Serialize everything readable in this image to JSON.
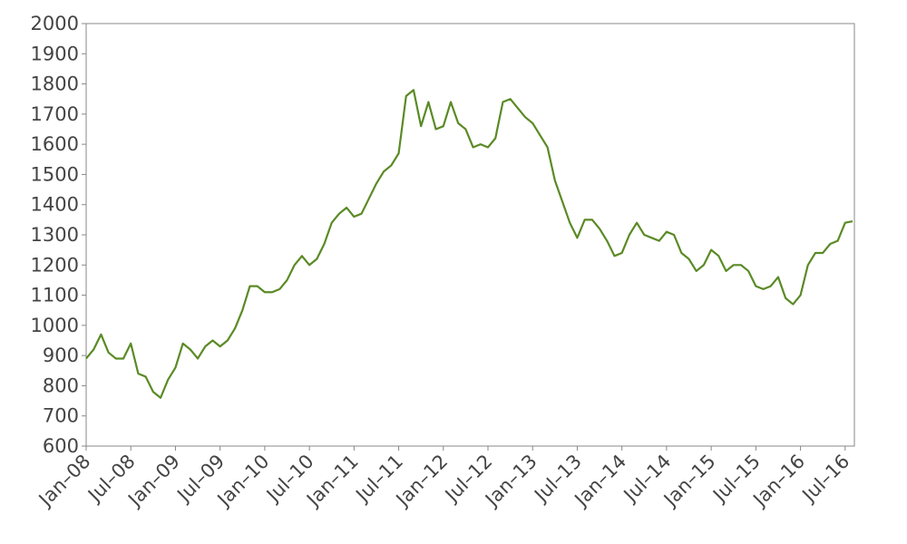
{
  "chart_data": {
    "type": "line",
    "color": "#5a8a25",
    "x": [
      "2008-01",
      "2008-02",
      "2008-03",
      "2008-04",
      "2008-05",
      "2008-06",
      "2008-07",
      "2008-08",
      "2008-09",
      "2008-10",
      "2008-11",
      "2008-12",
      "2009-01",
      "2009-02",
      "2009-03",
      "2009-04",
      "2009-05",
      "2009-06",
      "2009-07",
      "2009-08",
      "2009-09",
      "2009-10",
      "2009-11",
      "2009-12",
      "2010-01",
      "2010-02",
      "2010-03",
      "2010-04",
      "2010-05",
      "2010-06",
      "2010-07",
      "2010-08",
      "2010-09",
      "2010-10",
      "2010-11",
      "2010-12",
      "2011-01",
      "2011-02",
      "2011-03",
      "2011-04",
      "2011-05",
      "2011-06",
      "2011-07",
      "2011-08",
      "2011-09",
      "2011-10",
      "2011-11",
      "2011-12",
      "2012-01",
      "2012-02",
      "2012-03",
      "2012-04",
      "2012-05",
      "2012-06",
      "2012-07",
      "2012-08",
      "2012-09",
      "2012-10",
      "2012-11",
      "2012-12",
      "2013-01",
      "2013-02",
      "2013-03",
      "2013-04",
      "2013-05",
      "2013-06",
      "2013-07",
      "2013-08",
      "2013-09",
      "2013-10",
      "2013-11",
      "2013-12",
      "2014-01",
      "2014-02",
      "2014-03",
      "2014-04",
      "2014-05",
      "2014-06",
      "2014-07",
      "2014-08",
      "2014-09",
      "2014-10",
      "2014-11",
      "2014-12",
      "2015-01",
      "2015-02",
      "2015-03",
      "2015-04",
      "2015-05",
      "2015-06",
      "2015-07",
      "2015-08",
      "2015-09",
      "2015-10",
      "2015-11",
      "2015-12",
      "2016-01",
      "2016-02",
      "2016-03",
      "2016-04",
      "2016-05",
      "2016-06",
      "2016-07",
      "2016-08"
    ],
    "values": [
      890,
      920,
      970,
      910,
      890,
      890,
      940,
      840,
      830,
      780,
      760,
      820,
      860,
      940,
      920,
      890,
      930,
      950,
      930,
      950,
      990,
      1050,
      1130,
      1130,
      1110,
      1110,
      1120,
      1150,
      1200,
      1230,
      1200,
      1220,
      1270,
      1340,
      1370,
      1390,
      1360,
      1370,
      1420,
      1470,
      1510,
      1530,
      1570,
      1760,
      1780,
      1660,
      1740,
      1650,
      1660,
      1740,
      1670,
      1650,
      1590,
      1600,
      1590,
      1620,
      1740,
      1750,
      1720,
      1690,
      1670,
      1630,
      1590,
      1480,
      1410,
      1340,
      1290,
      1350,
      1350,
      1320,
      1280,
      1230,
      1240,
      1300,
      1340,
      1300,
      1290,
      1280,
      1310,
      1300,
      1240,
      1220,
      1180,
      1200,
      1250,
      1230,
      1180,
      1200,
      1200,
      1180,
      1130,
      1120,
      1130,
      1160,
      1090,
      1070,
      1100,
      1200,
      1240,
      1240,
      1270,
      1280,
      1340,
      1345
    ],
    "xlim": [
      "2008-01",
      "2016-08"
    ],
    "xticks": [
      {
        "value": "2008-01",
        "label": "Jan–08"
      },
      {
        "value": "2008-07",
        "label": "Jul–08"
      },
      {
        "value": "2009-01",
        "label": "Jan–09"
      },
      {
        "value": "2009-07",
        "label": "Jul–09"
      },
      {
        "value": "2010-01",
        "label": "Jan–10"
      },
      {
        "value": "2010-07",
        "label": "Jul–10"
      },
      {
        "value": "2011-01",
        "label": "Jan–11"
      },
      {
        "value": "2011-07",
        "label": "Jul–11"
      },
      {
        "value": "2012-01",
        "label": "Jan–12"
      },
      {
        "value": "2012-07",
        "label": "Jul–12"
      },
      {
        "value": "2013-01",
        "label": "Jan–13"
      },
      {
        "value": "2013-07",
        "label": "Jul–13"
      },
      {
        "value": "2014-01",
        "label": "Jan–14"
      },
      {
        "value": "2014-07",
        "label": "Jul–14"
      },
      {
        "value": "2015-01",
        "label": "Jan–15"
      },
      {
        "value": "2015-07",
        "label": "Jul–15"
      },
      {
        "value": "2016-01",
        "label": "Jan–16"
      },
      {
        "value": "2016-07",
        "label": "Jul–16"
      }
    ],
    "ylim": [
      600,
      2000
    ],
    "yticks": [
      600,
      700,
      800,
      900,
      1000,
      1100,
      1200,
      1300,
      1400,
      1500,
      1600,
      1700,
      1800,
      1900,
      2000
    ]
  }
}
